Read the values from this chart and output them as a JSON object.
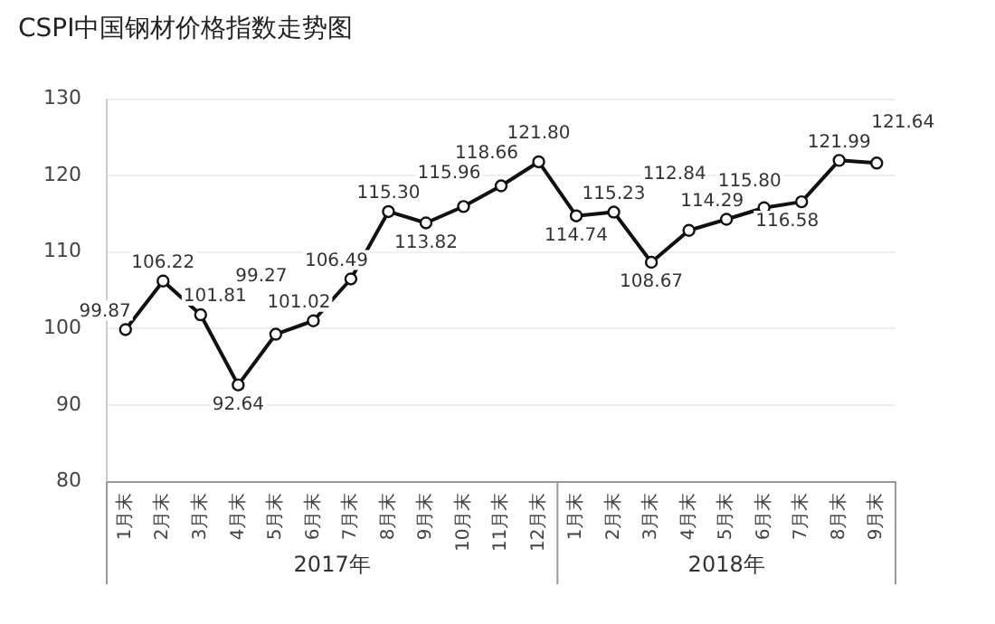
{
  "chart_data": {
    "type": "line",
    "title": "CSPI中国钢材价格指数走势图",
    "categories": [
      "1月末",
      "2月末",
      "3月末",
      "4月末",
      "5月末",
      "6月末",
      "7月末",
      "8月末",
      "9月末",
      "10月末",
      "11月末",
      "12月末",
      "1月末",
      "2月末",
      "3月末",
      "4月末",
      "5月末",
      "6月末",
      "7月末",
      "8月末",
      "9月末"
    ],
    "series": [
      {
        "color": "#111111",
        "values": [
          99.87,
          106.22,
          101.81,
          92.64,
          99.27,
          101.02,
          106.49,
          115.3,
          113.82,
          115.96,
          118.66,
          121.8,
          114.74,
          115.23,
          108.67,
          112.84,
          114.29,
          115.8,
          116.58,
          121.99,
          121.64
        ]
      }
    ],
    "annotations": [
      "2017年",
      "2018年"
    ],
    "value_labels": [
      "99.87",
      "106.22",
      "101.81",
      "92.64",
      "99.27",
      "101.02",
      "106.49",
      "115.30",
      "113.82",
      "115.96",
      "118.66",
      "121.80",
      "114.74",
      "115.23",
      "108.67",
      "112.84",
      "114.29",
      "115.80",
      "116.58",
      "121.99",
      "121.64"
    ],
    "ylim": [
      80,
      130
    ],
    "yticks": [
      80,
      90,
      100,
      110,
      120,
      130
    ],
    "grid": "y",
    "marker": "circle",
    "line_style": "solid",
    "legend": false
  }
}
